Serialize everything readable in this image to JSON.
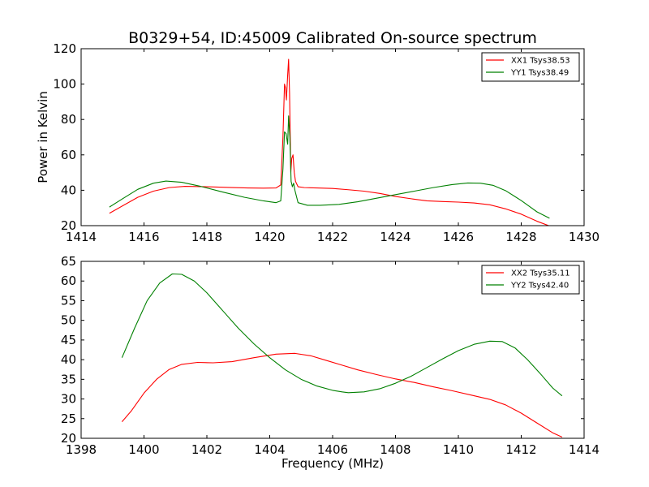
{
  "figure": {
    "title": "B0329+54, ID:45009 Calibrated On-source spectrum",
    "ylabel": "Power in Kelvin",
    "xlabel": "Frequency (MHz)"
  },
  "chart_data": [
    {
      "type": "line",
      "title": "B0329+54, ID:45009 Calibrated On-source spectrum",
      "xlabel": "",
      "ylabel": "Power in Kelvin",
      "xlim": [
        1414,
        1430
      ],
      "ylim": [
        20,
        120
      ],
      "xticks": [
        1414,
        1416,
        1418,
        1420,
        1422,
        1424,
        1426,
        1428,
        1430
      ],
      "yticks": [
        20,
        40,
        60,
        80,
        100,
        120
      ],
      "grid": false,
      "legend_position": "top-right",
      "series": [
        {
          "name": "XX1 Tsys38.53",
          "color": "#ff0000",
          "x": [
            1414.9,
            1415.3,
            1415.8,
            1416.3,
            1416.8,
            1417.3,
            1418.0,
            1418.7,
            1419.3,
            1419.8,
            1420.2,
            1420.35,
            1420.42,
            1420.47,
            1420.5,
            1420.53,
            1420.57,
            1420.6,
            1420.63,
            1420.67,
            1420.7,
            1420.74,
            1420.78,
            1420.82,
            1420.9,
            1421.1,
            1421.5,
            1422.0,
            1422.5,
            1423.0,
            1423.5,
            1424.0,
            1424.5,
            1425.0,
            1425.5,
            1426.0,
            1426.5,
            1427.0,
            1427.5,
            1428.0,
            1428.5,
            1428.9
          ],
          "y": [
            27,
            31,
            36,
            39.5,
            41.5,
            42.2,
            42.0,
            41.6,
            41.3,
            41.2,
            41.3,
            43,
            70,
            100,
            98,
            91,
            105,
            114,
            95,
            50,
            58,
            60,
            50,
            45,
            42,
            41.5,
            41.3,
            41.0,
            40.3,
            39.5,
            38.2,
            36.5,
            35.2,
            34.0,
            33.6,
            33.3,
            32.8,
            31.8,
            29.5,
            26.5,
            22.5,
            19.8
          ]
        },
        {
          "name": "YY1 Tsys38.49",
          "color": "#008000",
          "x": [
            1414.9,
            1415.3,
            1415.8,
            1416.3,
            1416.7,
            1417.2,
            1417.8,
            1418.5,
            1419.2,
            1419.8,
            1420.2,
            1420.35,
            1420.42,
            1420.47,
            1420.52,
            1420.57,
            1420.6,
            1420.64,
            1420.68,
            1420.72,
            1420.76,
            1420.8,
            1420.9,
            1421.2,
            1421.6,
            1422.2,
            1422.8,
            1423.4,
            1424.0,
            1424.6,
            1425.2,
            1425.8,
            1426.3,
            1426.7,
            1427.1,
            1427.5,
            1428.0,
            1428.5,
            1428.9
          ],
          "y": [
            30.5,
            35,
            40.5,
            44.0,
            45.2,
            44.5,
            42.2,
            39.0,
            36.0,
            34.0,
            33.0,
            34,
            52,
            73,
            72,
            66,
            82,
            70,
            45,
            42,
            44,
            40,
            33,
            31.5,
            31.5,
            32,
            33.5,
            35.5,
            37.5,
            39.5,
            41.5,
            43.2,
            44.1,
            44.0,
            42.8,
            39.8,
            34.2,
            27.8,
            24.2
          ]
        }
      ]
    },
    {
      "type": "line",
      "title": "",
      "xlabel": "Frequency (MHz)",
      "ylabel": "",
      "xlim": [
        1398,
        1414
      ],
      "ylim": [
        20,
        65
      ],
      "xticks": [
        1398,
        1400,
        1402,
        1404,
        1406,
        1408,
        1410,
        1412,
        1414
      ],
      "yticks": [
        20,
        25,
        30,
        35,
        40,
        45,
        50,
        55,
        60,
        65
      ],
      "grid": false,
      "legend_position": "top-right",
      "series": [
        {
          "name": "XX2 Tsys35.11",
          "color": "#ff0000",
          "x": [
            1399.3,
            1399.6,
            1400.0,
            1400.4,
            1400.8,
            1401.2,
            1401.7,
            1402.2,
            1402.8,
            1403.5,
            1404.2,
            1404.8,
            1405.3,
            1405.8,
            1406.3,
            1406.8,
            1407.4,
            1408.0,
            1408.6,
            1409.2,
            1409.8,
            1410.4,
            1411.0,
            1411.5,
            1412.0,
            1412.5,
            1413.0,
            1413.3
          ],
          "y": [
            24.2,
            27.0,
            31.5,
            35.0,
            37.5,
            38.8,
            39.3,
            39.2,
            39.5,
            40.5,
            41.4,
            41.6,
            41.0,
            39.8,
            38.6,
            37.4,
            36.2,
            35.1,
            34.2,
            33.1,
            32.1,
            31.0,
            29.9,
            28.5,
            26.4,
            23.9,
            21.4,
            20.3
          ]
        },
        {
          "name": "YY2 Tsys42.40",
          "color": "#008000",
          "x": [
            1399.3,
            1399.7,
            1400.1,
            1400.5,
            1400.9,
            1401.2,
            1401.6,
            1402.0,
            1402.5,
            1403.0,
            1403.5,
            1404.0,
            1404.5,
            1405.0,
            1405.5,
            1406.0,
            1406.3,
            1406.5,
            1407.0,
            1407.5,
            1408.0,
            1408.5,
            1409.0,
            1409.5,
            1410.0,
            1410.5,
            1411.0,
            1411.4,
            1411.8,
            1412.2,
            1412.6,
            1413.0,
            1413.3
          ],
          "y": [
            40.5,
            48.0,
            55.0,
            59.5,
            61.8,
            61.7,
            60.0,
            57.0,
            52.5,
            48.0,
            44.0,
            40.5,
            37.4,
            35.0,
            33.3,
            32.2,
            31.8,
            31.6,
            31.8,
            32.6,
            34.0,
            35.8,
            38.0,
            40.2,
            42.3,
            43.9,
            44.7,
            44.6,
            43.0,
            40.0,
            36.5,
            32.8,
            30.8
          ]
        }
      ]
    }
  ]
}
